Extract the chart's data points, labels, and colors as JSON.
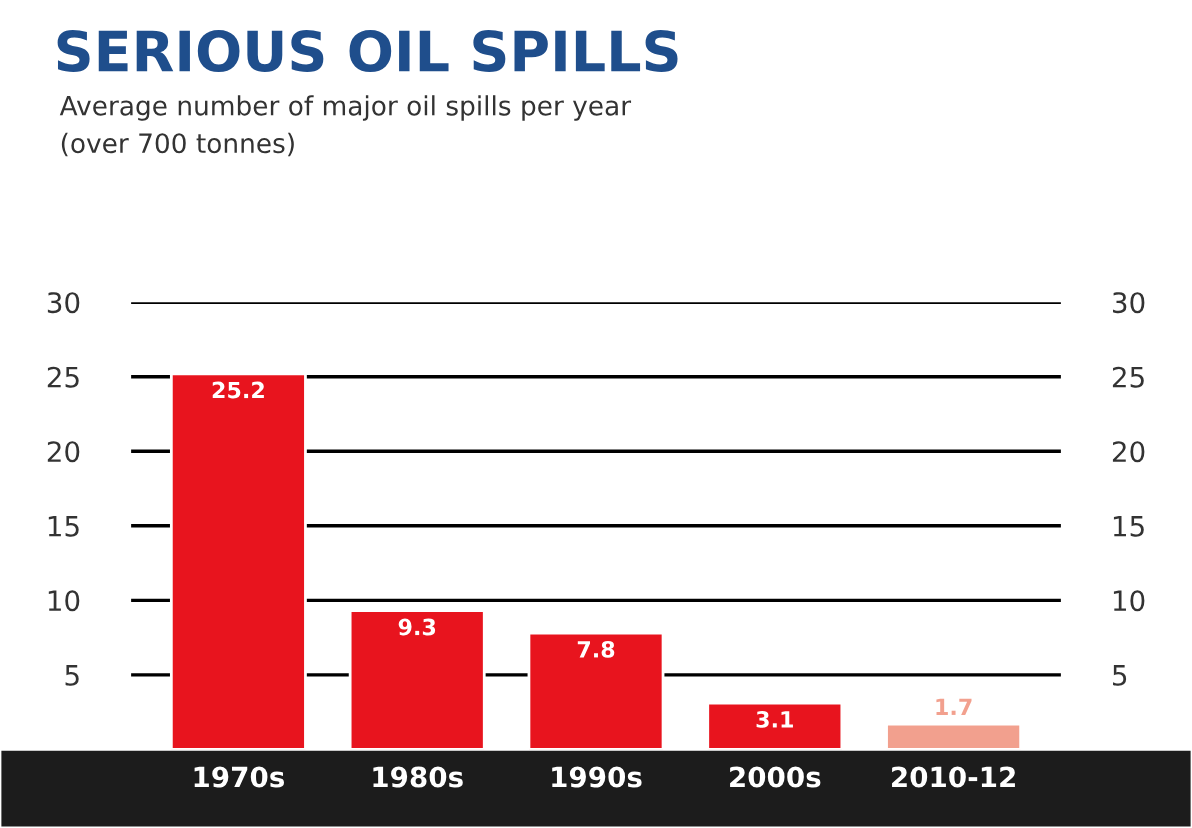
{
  "chart_data": {
    "type": "bar",
    "title": "SERIOUS OIL SPILLS",
    "subtitle": "Average number of major oil spills per year\n(over 700 tonnes)",
    "categories": [
      "1970s",
      "1980s",
      "1990s",
      "2000s",
      "2010-12"
    ],
    "values": [
      25.2,
      9.3,
      7.8,
      3.1,
      1.7
    ],
    "colors": [
      "#e8141e",
      "#e8141e",
      "#e8141e",
      "#e8141e",
      "#f2a08e"
    ],
    "ylim": [
      0,
      30
    ],
    "yticks": [
      5,
      10,
      15,
      20,
      25,
      30
    ],
    "y2lim": [
      0,
      30
    ],
    "y2ticks": [
      5,
      10,
      15,
      20,
      25,
      30
    ],
    "grid": "y",
    "data_labels": true
  }
}
